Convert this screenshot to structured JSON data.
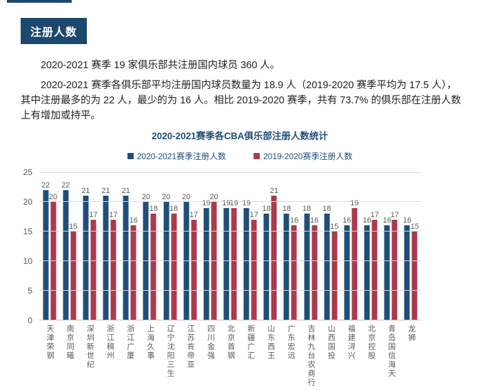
{
  "page": {
    "section_badge": "注册人数",
    "paragraphs": [
      "2020-2021 赛季 19 家俱乐部共注册国内球员 360 人。",
      "2020-2021 赛季各俱乐部平均注册国内球员数量为 18.9 人（2019-2020 赛季平均为 17.5 人），其中注册最多的为 22 人，最少的为 16 人。相比 2019-2020 赛季，共有 73.7% 的俱乐部在注册人数上有增加或持平。"
    ]
  },
  "colors": {
    "badge_bg": "#1c486e",
    "series_2020_2021": "#1f4e79",
    "series_2019_2020": "#ab3a4d",
    "grid": "#dadada",
    "axis_text": "#595959",
    "title_text": "#1f4e79"
  },
  "chart_data": {
    "type": "bar",
    "title": "2020-2021赛季各CBA俱乐部注册人数统计",
    "categories": [
      "天津荣钢",
      "南京同曦",
      "深圳新世纪",
      "浙江稠州",
      "浙江广厦",
      "上海久事",
      "辽宁沈阳三生",
      "江苏肯帝亚",
      "四川金强",
      "北京首钢",
      "新疆广汇",
      "山东西王",
      "广东宏远",
      "吉林九台农商行",
      "山西国投",
      "福建浔兴",
      "北京控股",
      "青岛国信海天",
      "龙狮"
    ],
    "series": [
      {
        "name": "2020-2021赛季注册人数",
        "color": "#1f4e79",
        "values": [
          22,
          22,
          21,
          21,
          21,
          20,
          20,
          20,
          19,
          19,
          19,
          18,
          18,
          18,
          18,
          16,
          16,
          16,
          16
        ]
      },
      {
        "name": "2019-2020赛季注册人数",
        "color": "#ab3a4d",
        "values": [
          20,
          15,
          17,
          17,
          16,
          18,
          18,
          17,
          20,
          19,
          17,
          21,
          16,
          16,
          15,
          19,
          17,
          17,
          15
        ]
      }
    ],
    "ylim": [
      0,
      25
    ],
    "yticks": [
      0,
      5,
      10,
      15,
      20,
      25
    ],
    "grid": true,
    "legend_position": "top",
    "value_labels": true
  }
}
